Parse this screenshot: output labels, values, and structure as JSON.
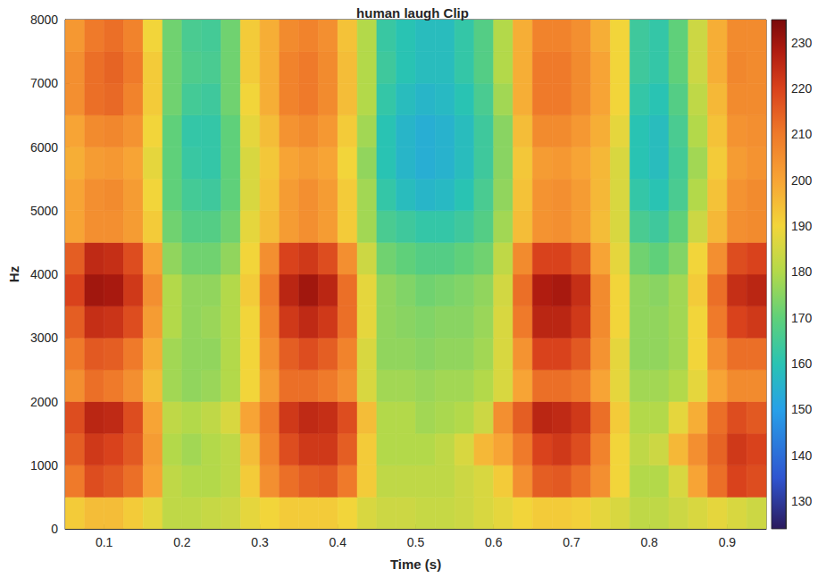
{
  "chart_data": {
    "type": "heatmap",
    "title": "human laugh Clip",
    "x_label": "Time (s)",
    "y_label": "Hz",
    "xlim": [
      0.05,
      0.95
    ],
    "xticks": [
      0.1,
      0.2,
      0.3,
      0.4,
      0.5,
      0.6,
      0.7,
      0.8,
      0.9
    ],
    "ylim": [
      0,
      8000
    ],
    "yticks": [
      0,
      1000,
      2000,
      3000,
      4000,
      5000,
      6000,
      7000,
      8000
    ],
    "grid": false,
    "x_edges": [
      0.05,
      0.075,
      0.1,
      0.125,
      0.15,
      0.175,
      0.2,
      0.225,
      0.25,
      0.275,
      0.3,
      0.325,
      0.35,
      0.375,
      0.4,
      0.425,
      0.45,
      0.475,
      0.5,
      0.525,
      0.55,
      0.575,
      0.6,
      0.625,
      0.65,
      0.675,
      0.7,
      0.725,
      0.75,
      0.775,
      0.8,
      0.825,
      0.85,
      0.875,
      0.9,
      0.925,
      0.95
    ],
    "y_edges": [
      0,
      500,
      1000,
      1500,
      2000,
      2500,
      3000,
      3500,
      4000,
      4500,
      5000,
      5500,
      6000,
      6500,
      7000,
      7500,
      8000
    ],
    "z": [
      [
        192,
        195,
        195,
        192,
        188,
        182,
        182,
        183,
        184,
        188,
        190,
        192,
        192,
        192,
        190,
        186,
        184,
        184,
        183,
        183,
        184,
        186,
        188,
        190,
        192,
        192,
        191,
        188,
        186,
        182,
        182,
        184,
        186,
        188,
        186,
        184
      ],
      [
        210,
        218,
        216,
        212,
        200,
        182,
        180,
        180,
        182,
        192,
        205,
        212,
        215,
        216,
        210,
        192,
        182,
        182,
        182,
        182,
        184,
        186,
        192,
        205,
        215,
        216,
        212,
        205,
        190,
        180,
        180,
        186,
        200,
        212,
        220,
        218
      ],
      [
        215,
        222,
        220,
        216,
        202,
        180,
        178,
        180,
        182,
        195,
        208,
        218,
        222,
        222,
        215,
        192,
        180,
        180,
        180,
        182,
        186,
        196,
        200,
        210,
        220,
        222,
        218,
        208,
        190,
        182,
        184,
        196,
        205,
        214,
        222,
        220
      ],
      [
        218,
        226,
        225,
        218,
        200,
        182,
        180,
        182,
        186,
        200,
        210,
        222,
        225,
        224,
        218,
        195,
        180,
        180,
        178,
        179,
        180,
        184,
        205,
        215,
        226,
        225,
        222,
        212,
        192,
        180,
        180,
        188,
        198,
        212,
        218,
        216
      ],
      [
        205,
        212,
        210,
        205,
        195,
        178,
        176,
        177,
        180,
        190,
        202,
        212,
        212,
        210,
        205,
        186,
        178,
        178,
        177,
        178,
        178,
        180,
        186,
        200,
        212,
        212,
        210,
        200,
        188,
        178,
        178,
        180,
        188,
        200,
        206,
        206
      ],
      [
        210,
        216,
        215,
        210,
        198,
        178,
        176,
        176,
        180,
        190,
        205,
        215,
        218,
        215,
        208,
        186,
        176,
        176,
        175,
        176,
        176,
        178,
        186,
        204,
        220,
        220,
        216,
        204,
        188,
        176,
        176,
        178,
        190,
        205,
        212,
        212
      ],
      [
        215,
        224,
        223,
        218,
        202,
        180,
        176,
        177,
        180,
        190,
        208,
        222,
        225,
        222,
        212,
        188,
        176,
        175,
        174,
        175,
        175,
        177,
        186,
        210,
        226,
        226,
        222,
        206,
        190,
        176,
        176,
        178,
        190,
        210,
        220,
        222
      ],
      [
        220,
        230,
        229,
        222,
        205,
        180,
        176,
        176,
        180,
        192,
        210,
        226,
        230,
        226,
        212,
        188,
        176,
        174,
        172,
        173,
        174,
        176,
        185,
        212,
        228,
        229,
        224,
        206,
        190,
        176,
        175,
        178,
        192,
        212,
        224,
        226
      ],
      [
        215,
        225,
        224,
        218,
        200,
        176,
        172,
        172,
        176,
        190,
        205,
        220,
        222,
        218,
        205,
        184,
        172,
        170,
        168,
        168,
        170,
        172,
        182,
        206,
        220,
        220,
        216,
        200,
        188,
        172,
        170,
        174,
        190,
        205,
        218,
        220
      ],
      [
        200,
        205,
        205,
        202,
        192,
        172,
        168,
        168,
        172,
        188,
        195,
        202,
        205,
        202,
        192,
        178,
        166,
        164,
        162,
        162,
        164,
        168,
        178,
        195,
        204,
        205,
        202,
        195,
        186,
        166,
        164,
        170,
        184,
        196,
        205,
        206
      ],
      [
        200,
        205,
        206,
        202,
        190,
        170,
        165,
        164,
        170,
        186,
        194,
        202,
        205,
        202,
        192,
        178,
        162,
        158,
        156,
        157,
        160,
        166,
        176,
        194,
        204,
        205,
        202,
        196,
        186,
        162,
        160,
        166,
        180,
        194,
        204,
        206
      ],
      [
        198,
        202,
        203,
        200,
        188,
        170,
        163,
        162,
        170,
        186,
        193,
        200,
        202,
        200,
        190,
        176,
        160,
        156,
        154,
        155,
        158,
        164,
        175,
        193,
        202,
        203,
        200,
        196,
        186,
        160,
        158,
        165,
        178,
        192,
        202,
        204
      ],
      [
        200,
        206,
        207,
        204,
        190,
        170,
        162,
        162,
        170,
        188,
        195,
        204,
        206,
        203,
        192,
        178,
        160,
        156,
        154,
        155,
        158,
        164,
        175,
        195,
        206,
        206,
        203,
        198,
        188,
        160,
        158,
        166,
        180,
        194,
        204,
        205
      ],
      [
        205,
        212,
        213,
        208,
        192,
        172,
        165,
        164,
        172,
        190,
        198,
        208,
        210,
        206,
        195,
        180,
        162,
        158,
        156,
        157,
        160,
        166,
        178,
        198,
        210,
        210,
        206,
        200,
        190,
        162,
        160,
        168,
        182,
        196,
        206,
        206
      ],
      [
        205,
        212,
        214,
        210,
        192,
        172,
        167,
        166,
        172,
        192,
        198,
        208,
        210,
        206,
        195,
        180,
        164,
        160,
        158,
        158,
        162,
        168,
        180,
        198,
        210,
        210,
        206,
        200,
        190,
        164,
        162,
        170,
        184,
        198,
        207,
        206
      ],
      [
        203,
        210,
        212,
        208,
        190,
        172,
        166,
        165,
        172,
        192,
        198,
        206,
        208,
        205,
        194,
        180,
        163,
        160,
        158,
        158,
        162,
        168,
        180,
        198,
        208,
        208,
        205,
        198,
        190,
        164,
        162,
        170,
        184,
        198,
        206,
        206
      ]
    ],
    "colorbar_lim": [
      124,
      235
    ],
    "colorbar_ticks": [
      130,
      140,
      150,
      160,
      170,
      180,
      190,
      200,
      210,
      220,
      230
    ]
  }
}
